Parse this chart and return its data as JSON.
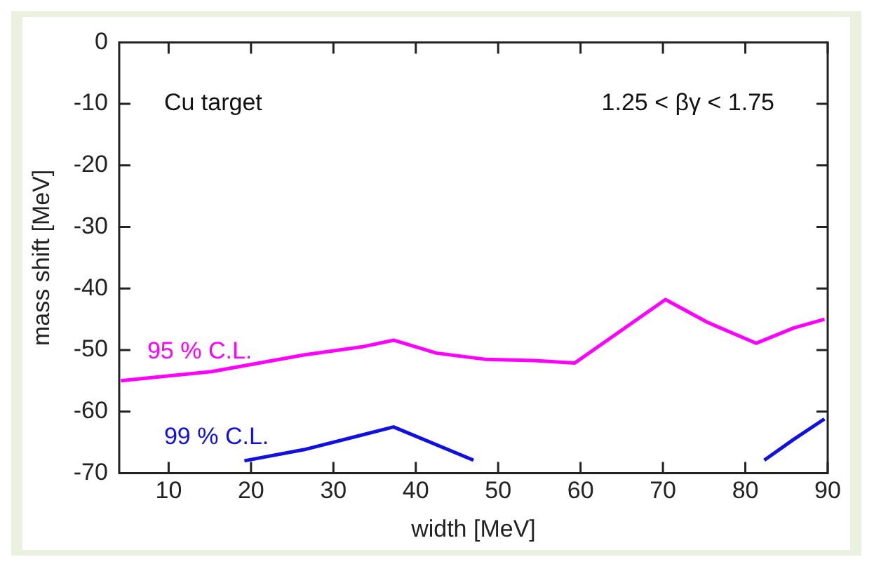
{
  "chart_data": {
    "type": "line",
    "xlabel": "width [MeV]",
    "ylabel": "mass shift [MeV]",
    "annotations": [
      "Cu target",
      "1.25 < βγ < 1.75"
    ],
    "series": [
      {
        "name": "95 % C.L.",
        "color": "#ff00ff",
        "x": [
          4.2,
          15.2,
          26.4,
          33.4,
          37.3,
          42.5,
          48.4,
          54.4,
          59.3,
          70.3,
          75.4,
          81.3,
          85.9,
          89.6
        ],
        "values": [
          -55,
          -53.5,
          -50.8,
          -49.5,
          -48.4,
          -50.5,
          -51.5,
          -51.7,
          -52.1,
          -41.8,
          -45.5,
          -48.9,
          -46.4,
          -45
        ]
      },
      {
        "name": "99 % C.L.",
        "color": "#1010e0",
        "x": [
          19.2,
          26.4,
          37.3,
          47,
          64,
          82.3,
          85.9,
          89.6
        ],
        "values": [
          -68,
          -66.2,
          -62.5,
          -67.9,
          null,
          -67.9,
          -64.5,
          -61.2
        ]
      }
    ],
    "xlim": [
      4,
      90
    ],
    "xticks": [
      10,
      20,
      30,
      40,
      50,
      60,
      70,
      80,
      90
    ],
    "ylim": [
      -70,
      0
    ],
    "yticks": [
      -70,
      -60,
      -50,
      -40,
      -30,
      -20,
      -10,
      0
    ],
    "grid": false,
    "legend": false,
    "marker": "none",
    "line_style": "solid"
  }
}
